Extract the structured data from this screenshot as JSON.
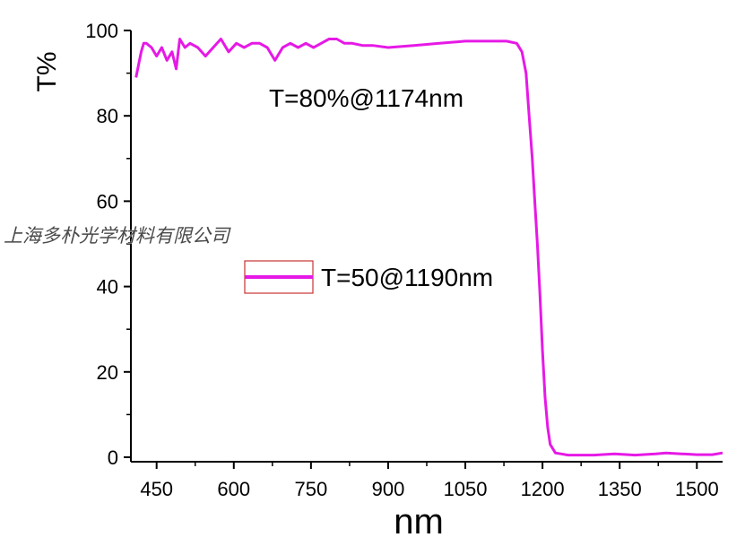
{
  "chart_data": {
    "type": "line",
    "title": "",
    "xlabel": "nm",
    "ylabel": "T%",
    "xlim": [
      400,
      1550
    ],
    "ylim": [
      0,
      100
    ],
    "x_ticks": [
      450,
      600,
      750,
      900,
      1050,
      1200,
      1350,
      1500
    ],
    "y_ticks": [
      0,
      20,
      40,
      60,
      80,
      100
    ],
    "x_tick_labels": [
      "450",
      "600",
      "750",
      "900",
      "1050",
      "1200",
      "1350",
      "1500"
    ],
    "y_tick_labels": [
      "0",
      "20",
      "40",
      "60",
      "80",
      "100"
    ],
    "grid": false,
    "legend_position": "middle-left",
    "series": [
      {
        "name": "T=50@1190nm",
        "color": "#e619e6",
        "points": [
          [
            410,
            89
          ],
          [
            415,
            92
          ],
          [
            420,
            95
          ],
          [
            425,
            97
          ],
          [
            430,
            97
          ],
          [
            440,
            96
          ],
          [
            450,
            94
          ],
          [
            460,
            96
          ],
          [
            470,
            93
          ],
          [
            480,
            95
          ],
          [
            488,
            91
          ],
          [
            495,
            98
          ],
          [
            505,
            96
          ],
          [
            515,
            97
          ],
          [
            530,
            96
          ],
          [
            545,
            94
          ],
          [
            560,
            96
          ],
          [
            575,
            98
          ],
          [
            590,
            95
          ],
          [
            605,
            97
          ],
          [
            620,
            96
          ],
          [
            635,
            97
          ],
          [
            650,
            97
          ],
          [
            665,
            96
          ],
          [
            680,
            93
          ],
          [
            695,
            96
          ],
          [
            710,
            97
          ],
          [
            725,
            96
          ],
          [
            740,
            97
          ],
          [
            755,
            96
          ],
          [
            770,
            97
          ],
          [
            785,
            98
          ],
          [
            800,
            98
          ],
          [
            815,
            97
          ],
          [
            830,
            97
          ],
          [
            850,
            96.5
          ],
          [
            870,
            96.5
          ],
          [
            900,
            96
          ],
          [
            950,
            96.5
          ],
          [
            1000,
            97
          ],
          [
            1050,
            97.5
          ],
          [
            1100,
            97.5
          ],
          [
            1130,
            97.5
          ],
          [
            1150,
            97
          ],
          [
            1160,
            95
          ],
          [
            1168,
            90
          ],
          [
            1174,
            80
          ],
          [
            1180,
            70
          ],
          [
            1185,
            60
          ],
          [
            1190,
            50
          ],
          [
            1195,
            38
          ],
          [
            1200,
            25
          ],
          [
            1205,
            14
          ],
          [
            1210,
            7
          ],
          [
            1215,
            3
          ],
          [
            1225,
            1
          ],
          [
            1250,
            0.5
          ],
          [
            1300,
            0.5
          ],
          [
            1340,
            0.8
          ],
          [
            1380,
            0.5
          ],
          [
            1420,
            0.8
          ],
          [
            1440,
            1.0
          ],
          [
            1470,
            0.8
          ],
          [
            1500,
            0.6
          ],
          [
            1530,
            0.6
          ],
          [
            1550,
            1
          ]
        ]
      }
    ],
    "annotations": [
      {
        "text": "T=80%@1174nm",
        "x": 1174,
        "y": 80
      }
    ]
  },
  "watermark": {
    "text": "上海多朴光学材料有限公司"
  },
  "colors": {
    "line": "#e619e6",
    "axis": "#000000",
    "legend_box": "#c83232"
  }
}
